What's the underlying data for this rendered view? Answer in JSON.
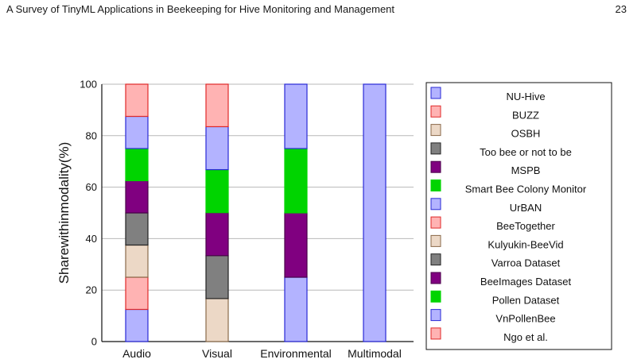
{
  "header": {
    "title": "A Survey of TinyML Applications in Beekeeping for Hive Monitoring and Management",
    "page_number": "23"
  },
  "colors": {
    "NU-Hive": {
      "fill": "#b3b3ff",
      "stroke": "#2a2ad6"
    },
    "BUZZ": {
      "fill": "#ffb3b3",
      "stroke": "#e02a2a"
    },
    "OSBH": {
      "fill": "#ecd8c6",
      "stroke": "#8a6a4a"
    },
    "Too bee or not to be": {
      "fill": "#808080",
      "stroke": "#222222"
    },
    "MSPB": {
      "fill": "#800080",
      "stroke": "#4a004a"
    },
    "Smart Bee Colony Monitor": {
      "fill": "#00d400",
      "stroke": "#00d400"
    },
    "UrBAN": {
      "fill": "#b3b3ff",
      "stroke": "#2a2ad6"
    },
    "BeeTogether": {
      "fill": "#ffb3b3",
      "stroke": "#e02a2a"
    },
    "Kulyukin-BeeVid": {
      "fill": "#ecd8c6",
      "stroke": "#8a6a4a"
    },
    "Varroa Dataset": {
      "fill": "#808080",
      "stroke": "#222222"
    },
    "BeeImages Dataset": {
      "fill": "#800080",
      "stroke": "#4a004a"
    },
    "Pollen Dataset": {
      "fill": "#00d400",
      "stroke": "#00d400"
    },
    "VnPollenBee": {
      "fill": "#b3b3ff",
      "stroke": "#2a2ad6"
    },
    "Ngo et al.": {
      "fill": "#ffb3b3",
      "stroke": "#e02a2a"
    }
  },
  "chart_data": {
    "type": "bar",
    "stacked": true,
    "categories": [
      "Audio",
      "Visual",
      "Environmental",
      "Multimodal"
    ],
    "ylabel": "Sharewithinmodality(%)",
    "xlabel": "",
    "ylim": [
      0,
      100
    ],
    "yticks": [
      0,
      20,
      40,
      60,
      80,
      100
    ],
    "grid": "horizontal",
    "legend_position": "right",
    "series": [
      {
        "name": "NU-Hive",
        "values": [
          12.5,
          0,
          0,
          0
        ]
      },
      {
        "name": "BUZZ",
        "values": [
          12.5,
          0,
          0,
          0
        ]
      },
      {
        "name": "OSBH",
        "values": [
          12.5,
          0,
          0,
          0
        ]
      },
      {
        "name": "Too bee or not to be",
        "values": [
          12.5,
          0,
          0,
          0
        ]
      },
      {
        "name": "MSPB",
        "values": [
          12.5,
          0,
          0,
          0
        ]
      },
      {
        "name": "Smart Bee Colony Monitor",
        "values": [
          12.5,
          0,
          0,
          0
        ]
      },
      {
        "name": "UrBAN",
        "values": [
          12.5,
          0,
          0,
          0
        ]
      },
      {
        "name": "BeeTogether",
        "values": [
          12.5,
          0,
          0,
          0
        ]
      },
      {
        "name": "Kulyukin-BeeVid",
        "values": [
          0,
          16.7,
          0,
          0
        ]
      },
      {
        "name": "Varroa Dataset",
        "values": [
          0,
          16.7,
          0,
          0
        ]
      },
      {
        "name": "BeeImages Dataset",
        "values": [
          0,
          16.7,
          0,
          0
        ]
      },
      {
        "name": "Pollen Dataset",
        "values": [
          0,
          16.7,
          0,
          0
        ]
      },
      {
        "name": "VnPollenBee",
        "values": [
          0,
          16.7,
          0,
          0
        ]
      },
      {
        "name": "Ngo et al.",
        "values": [
          0,
          16.7,
          0,
          0
        ]
      },
      {
        "name": "NU-Hive",
        "values": [
          0,
          0,
          25,
          0
        ]
      },
      {
        "name": "MSPB",
        "values": [
          0,
          0,
          25,
          0
        ]
      },
      {
        "name": "Smart Bee Colony Monitor",
        "values": [
          0,
          0,
          25,
          0
        ]
      },
      {
        "name": "UrBAN",
        "values": [
          0,
          0,
          25,
          100
        ]
      }
    ],
    "legend": [
      "NU-Hive",
      "BUZZ",
      "OSBH",
      "Too bee or not to be",
      "MSPB",
      "Smart Bee Colony Monitor",
      "UrBAN",
      "BeeTogether",
      "Kulyukin-BeeVid",
      "Varroa Dataset",
      "BeeImages Dataset",
      "Pollen Dataset",
      "VnPollenBee",
      "Ngo et al."
    ]
  }
}
